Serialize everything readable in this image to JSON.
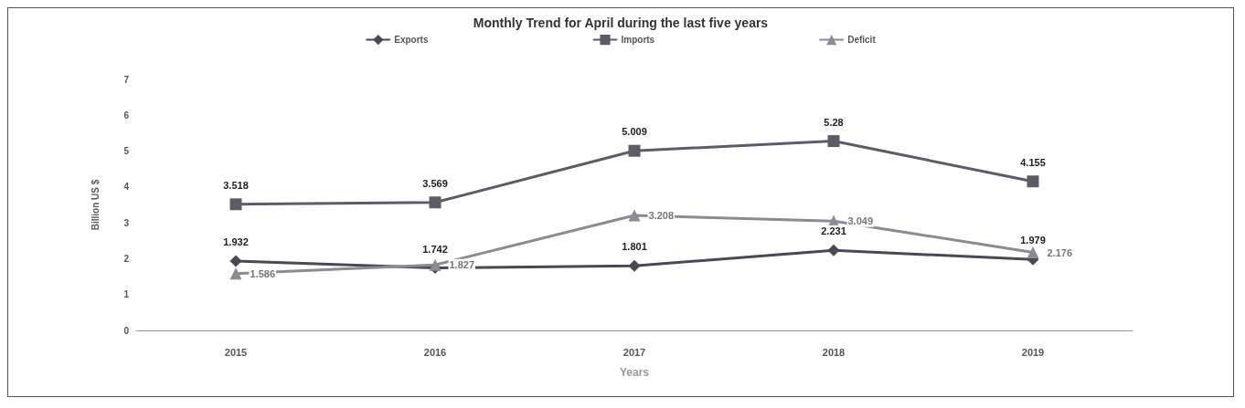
{
  "chart_data": {
    "type": "line",
    "title": "Monthly Trend for April during the last five years",
    "xlabel": "Years",
    "ylabel": "Billion US $",
    "categories": [
      "2015",
      "2016",
      "2017",
      "2018",
      "2019"
    ],
    "series": [
      {
        "name": "Exports",
        "color": "#4b4756",
        "marker": "diamond",
        "values": [
          1.932,
          1.742,
          1.801,
          2.231,
          1.979
        ]
      },
      {
        "name": "Imports",
        "color": "#5e5b68",
        "marker": "square",
        "values": [
          3.518,
          3.569,
          5.009,
          5.28,
          4.155
        ]
      },
      {
        "name": "Deficit",
        "color": "#8c8a92",
        "marker": "triangle",
        "values": [
          1.586,
          1.827,
          3.208,
          3.049,
          2.176
        ]
      }
    ],
    "ylim": [
      0,
      7
    ],
    "yticks": [
      0,
      1,
      2,
      3,
      4,
      5,
      6,
      7
    ],
    "grid": false,
    "legend": "top",
    "data_labels": true,
    "line_style": "solid"
  }
}
